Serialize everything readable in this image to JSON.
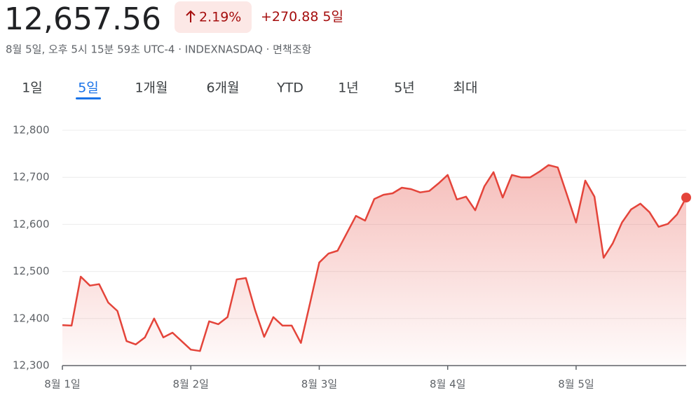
{
  "header": {
    "price": "12,657.56",
    "change_pct": "2.19%",
    "change_abs": "+270.88",
    "period": "5일",
    "subtitle": "8월 5일, 오후 5시 15분 59초 UTC-4 · INDEXNASDAQ · 면책조항"
  },
  "tabs": {
    "items": [
      "1일",
      "5일",
      "1개월",
      "6개월",
      "YTD",
      "1년",
      "5년",
      "최대"
    ],
    "selected": 1
  },
  "chart_data": {
    "type": "line",
    "categories": [
      "8월 1일",
      null,
      null,
      null,
      null,
      null,
      null,
      null,
      null,
      null,
      null,
      null,
      null,
      null,
      "8월 2일",
      null,
      null,
      null,
      null,
      null,
      null,
      null,
      null,
      null,
      null,
      null,
      null,
      null,
      "8월 3일",
      null,
      null,
      null,
      null,
      null,
      null,
      null,
      null,
      null,
      null,
      null,
      null,
      null,
      "8월 4일",
      null,
      null,
      null,
      null,
      null,
      null,
      null,
      null,
      null,
      null,
      null,
      null,
      null,
      "8월 5일",
      null,
      null,
      null,
      null,
      null,
      null,
      null,
      null,
      null,
      null,
      null,
      null
    ],
    "series": [
      {
        "color": "#e4443a",
        "values": [
          12386,
          12385,
          12489,
          12470,
          12473,
          12434,
          12416,
          12352,
          12345,
          12360,
          12400,
          12360,
          12370,
          12352,
          12334,
          12331,
          12394,
          12388,
          12403,
          12483,
          12486,
          12418,
          12361,
          12403,
          12385,
          12385,
          12348,
          12433,
          12519,
          12538,
          12544,
          12581,
          12618,
          12608,
          12654,
          12663,
          12666,
          12678,
          12675,
          12668,
          12671,
          12687,
          12705,
          12653,
          12659,
          12630,
          12681,
          12711,
          12657,
          12705,
          12700,
          12700,
          12712,
          12726,
          12721,
          12663,
          12604,
          12693,
          12659,
          12529,
          12560,
          12604,
          12632,
          12644,
          12626,
          12595,
          12601,
          12621,
          12657
        ]
      }
    ],
    "ylim": [
      12300,
      12800
    ],
    "yticks": [
      {
        "value": 12300,
        "label": "12,300"
      },
      {
        "value": 12400,
        "label": "12,400"
      },
      {
        "value": 12500,
        "label": "12,500"
      },
      {
        "value": 12600,
        "label": "12,600"
      },
      {
        "value": 12700,
        "label": "12,700"
      },
      {
        "value": 12800,
        "label": "12,800"
      }
    ],
    "grid": true
  }
}
